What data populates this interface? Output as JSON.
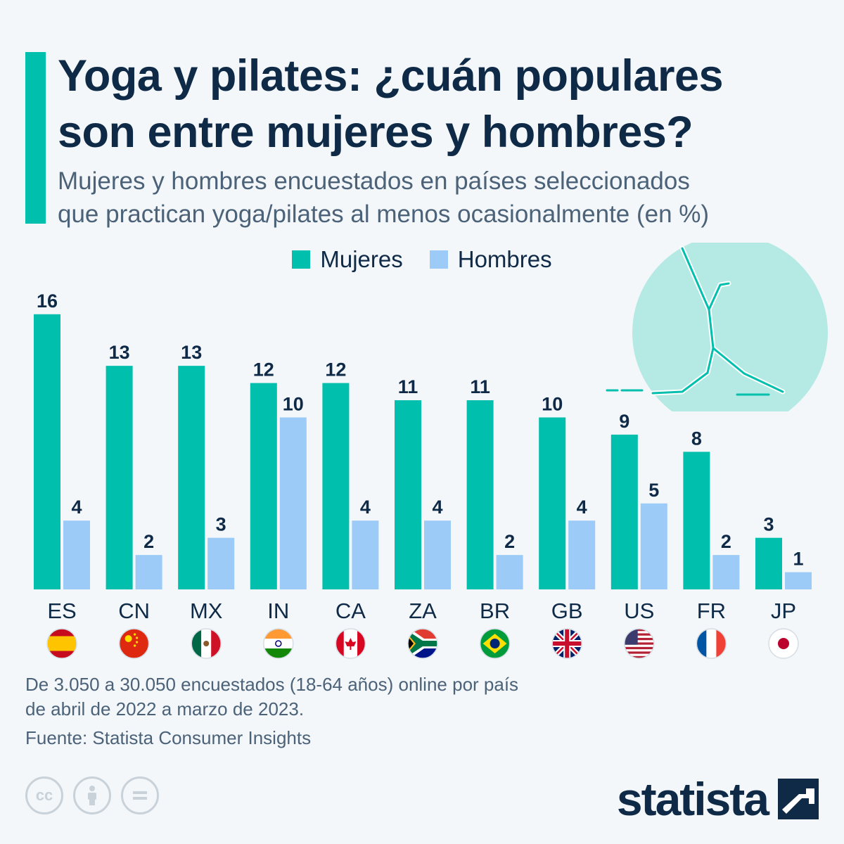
{
  "header": {
    "title_line1": "Yoga y pilates: ¿cuán populares",
    "title_line2": "son entre mujeres y hombres?",
    "subtitle_line1": "Mujeres y hombres encuestados en países seleccionados",
    "subtitle_line2": "que practican yoga/pilates al menos ocasionalmente (en %)"
  },
  "colors": {
    "accent": "#00bfad",
    "women": "#00bfad",
    "men": "#9ccbf8",
    "text_dark": "#0f2a47",
    "text_muted": "#4c6278"
  },
  "chart_data": {
    "type": "bar",
    "title": "Yoga y pilates: ¿cuán populares son entre mujeres y hombres?",
    "subtitle": "Mujeres y hombres encuestados en países seleccionados que practican yoga/pilates al menos ocasionalmente (en %)",
    "categories": [
      "ES",
      "CN",
      "MX",
      "IN",
      "CA",
      "ZA",
      "BR",
      "GB",
      "US",
      "FR",
      "JP"
    ],
    "series": [
      {
        "name": "Mujeres",
        "color": "#00bfad",
        "values": [
          16,
          13,
          13,
          12,
          12,
          11,
          11,
          10,
          9,
          8,
          3
        ]
      },
      {
        "name": "Hombres",
        "color": "#9ccbf8",
        "values": [
          4,
          2,
          3,
          10,
          4,
          4,
          2,
          4,
          5,
          2,
          1
        ]
      }
    ],
    "ylim": [
      0,
      16
    ],
    "grid": false,
    "legend": "top-center",
    "flags": [
      "flag-spain-icon",
      "flag-china-icon",
      "flag-mexico-icon",
      "flag-india-icon",
      "flag-canada-icon",
      "flag-south-africa-icon",
      "flag-brazil-icon",
      "flag-uk-icon",
      "flag-usa-icon",
      "flag-france-icon",
      "flag-japan-icon"
    ]
  },
  "footer": {
    "note_line1": "De 3.050 a 30.050 encuestados (18-64 años) online por país",
    "note_line2": "de abril de 2022 a marzo de 2023.",
    "source": "Fuente: Statista Consumer Insights",
    "brand": "statista",
    "license_icons": [
      "cc-icon",
      "attribution-icon",
      "no-derivatives-icon"
    ]
  }
}
